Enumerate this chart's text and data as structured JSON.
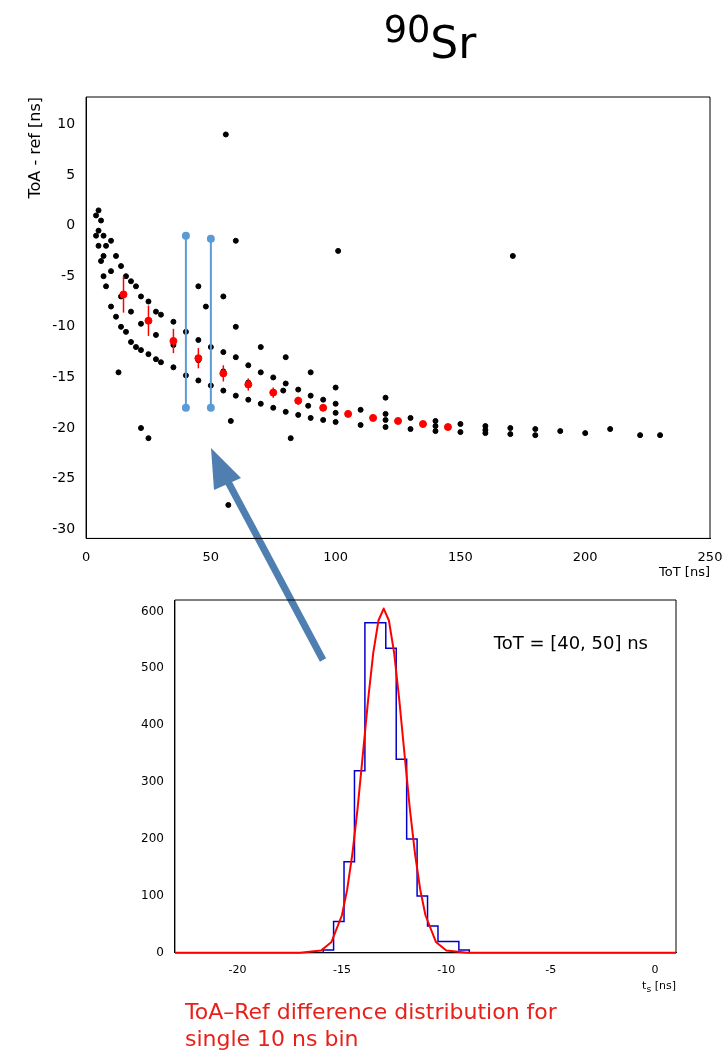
{
  "chart_data": [
    {
      "type": "scatter",
      "title": "$^{90}$Sr",
      "xlabel": "ToT [ns]",
      "ylabel": "ToA - ref [ns]",
      "xlim": [
        0,
        250
      ],
      "xticks": [
        0,
        50,
        100,
        150,
        200,
        250
      ],
      "ylim": [
        -30.9,
        12.7
      ],
      "yticks": [
        -30,
        -25,
        -20,
        -15,
        -10,
        -5,
        0,
        5,
        10
      ],
      "grid": false,
      "legend": false,
      "marker": "circle",
      "series": [
        {
          "color": "#000000",
          "x": [
            4,
            4,
            5,
            5,
            6,
            6,
            7,
            7,
            8,
            8,
            10,
            10,
            12,
            12,
            14,
            14,
            16,
            16,
            18,
            18,
            20,
            20,
            22,
            22,
            25,
            25,
            28,
            28,
            30,
            30,
            35,
            35,
            40,
            40,
            45,
            45,
            50,
            50,
            55,
            55,
            60,
            60,
            65,
            65,
            70,
            70,
            75,
            75,
            80,
            80,
            85,
            85,
            90,
            90,
            95,
            95,
            100,
            100,
            110,
            110,
            120,
            120,
            130,
            130,
            140,
            140,
            150,
            150,
            160,
            160,
            170,
            170,
            180,
            180,
            190,
            200,
            210,
            222,
            230,
            5,
            7,
            10,
            14,
            18,
            22,
            28,
            35,
            45,
            55,
            65,
            79,
            89,
            100,
            120,
            140,
            160,
            45,
            48,
            55,
            60,
            70,
            80,
            90,
            100,
            120,
            56,
            101,
            171,
            22,
            25,
            60,
            57,
            13,
            82,
            58
          ],
          "values": [
            1,
            -1,
            1.5,
            -2,
            0.5,
            -3.5,
            -1,
            -5,
            -2,
            -6,
            -1.5,
            -8,
            -3,
            -9,
            -4,
            -10,
            -5,
            -10.5,
            -5.5,
            -11.5,
            -6,
            -12,
            -7,
            -12.3,
            -7.5,
            -12.7,
            -8.5,
            -13.2,
            -8.8,
            -13.5,
            -9.5,
            -14,
            -10.5,
            -14.8,
            -11.3,
            -15.3,
            -12,
            -15.8,
            -12.5,
            -16.3,
            -13,
            -16.8,
            -13.8,
            -17.2,
            -14.5,
            -17.6,
            -15,
            -18,
            -15.6,
            -18.4,
            -16.2,
            -18.7,
            -16.8,
            -19,
            -17.2,
            -19.2,
            -17.6,
            -19.4,
            -18.2,
            -19.7,
            -18.6,
            -19.9,
            -19,
            -20.1,
            -19.3,
            -20.3,
            -19.6,
            -20.4,
            -19.8,
            -20.5,
            -20,
            -20.6,
            -20.1,
            -20.7,
            -20.3,
            -20.5,
            -20.1,
            -20.7,
            -20.7,
            -0.5,
            -3,
            -4.5,
            -7,
            -8.5,
            -9.7,
            -10.8,
            -11.8,
            -13.3,
            -14.4,
            -15.5,
            -16.3,
            -17.8,
            -18.5,
            -19.2,
            -19.8,
            -20.2,
            -6,
            -8,
            -7,
            -10,
            -12,
            -13,
            -14.5,
            -16,
            -17,
            9,
            -2.5,
            -3,
            -20,
            -21,
            -1.5,
            -27.6,
            -14.5,
            -21,
            -19.3
          ]
        },
        {
          "color": "#ff0000",
          "x": [
            15,
            25,
            35,
            45,
            55,
            65,
            75,
            85,
            95,
            105,
            115,
            125,
            135,
            145
          ],
          "values": [
            -6.8,
            -9.4,
            -11.4,
            -13.1,
            -14.6,
            -15.7,
            -16.5,
            -17.3,
            -18,
            -18.6,
            -19,
            -19.3,
            -19.6,
            -19.9
          ],
          "errors": [
            1.8,
            1.5,
            1.2,
            1,
            0.8,
            0.6,
            0.5,
            0.4,
            0.3,
            0.3,
            0.3,
            0.3,
            0.2,
            0.2
          ]
        },
        {
          "type": "line",
          "color": "#5b9bd5",
          "x": [
            40,
            40
          ],
          "values": [
            -18,
            -1
          ]
        },
        {
          "type": "line",
          "color": "#5b9bd5",
          "x": [
            50,
            50
          ],
          "values": [
            -18,
            -1.3
          ]
        }
      ]
    },
    {
      "type": "histogram",
      "xlabel": "t$_{s}$ [ns]",
      "xlim": [
        -23,
        1
      ],
      "xticks": [
        -20,
        -15,
        -10,
        -5,
        0
      ],
      "ylim": [
        0,
        620
      ],
      "yticks": [
        0,
        100,
        200,
        300,
        400,
        500,
        600
      ],
      "grid": false,
      "legend": false,
      "marker": "none",
      "bins": [
        -15.9,
        -15.4,
        -14.9,
        -14.4,
        -13.9,
        -13.4,
        -12.9,
        -12.4,
        -11.9,
        -11.4,
        -10.9,
        -10.4,
        -9.9,
        -9.4,
        -8.9
      ],
      "series": [
        {
          "type": "histogram",
          "color": "#0000cc",
          "values": [
            5,
            55,
            160,
            320,
            580,
            580,
            535,
            340,
            200,
            100,
            47,
            20,
            20,
            5
          ]
        },
        {
          "type": "line",
          "color": "#ff0000",
          "x": [
            -23,
            -17,
            -16,
            -15.5,
            -15,
            -14.75,
            -14.5,
            -14.25,
            -14,
            -13.75,
            -13.5,
            -13.25,
            -13,
            -12.75,
            -12.5,
            -12.25,
            -12,
            -11.75,
            -11.5,
            -11.25,
            -11,
            -10.5,
            -10,
            -9,
            1
          ],
          "values": [
            0,
            0,
            4,
            19,
            66,
            111,
            174,
            254,
            348,
            443,
            527,
            584,
            605,
            584,
            527,
            443,
            348,
            254,
            174,
            111,
            66,
            19,
            4,
            0,
            0
          ]
        }
      ],
      "annotations": [
        "ToT = [40, 50] ns",
        "ToA–Ref difference distribution for single 10 ns bin"
      ]
    }
  ]
}
